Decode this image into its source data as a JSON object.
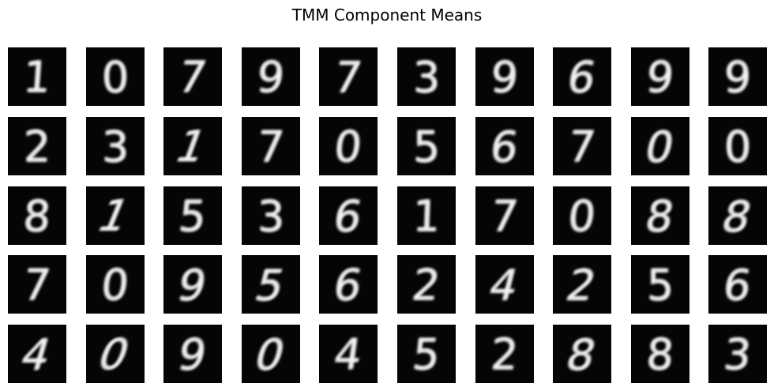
{
  "title": "TMM Component Means",
  "colors": {
    "background": "#ffffff",
    "tile_background": "#050505",
    "digit_color": "#f4f4f4"
  },
  "grid": {
    "rows": [
      [
        "1",
        "0",
        "7",
        "9",
        "7",
        "3",
        "9",
        "6",
        "9",
        "9"
      ],
      [
        "2",
        "3",
        "1",
        "7",
        "0",
        "5",
        "6",
        "7",
        "0",
        "0"
      ],
      [
        "8",
        "1",
        "5",
        "3",
        "6",
        "1",
        "7",
        "0",
        "8",
        "8"
      ],
      [
        "7",
        "0",
        "9",
        "5",
        "6",
        "2",
        "4",
        "2",
        "5",
        "6"
      ],
      [
        "4",
        "0",
        "9",
        "0",
        "4",
        "5",
        "2",
        "8",
        "8",
        "3"
      ]
    ]
  }
}
